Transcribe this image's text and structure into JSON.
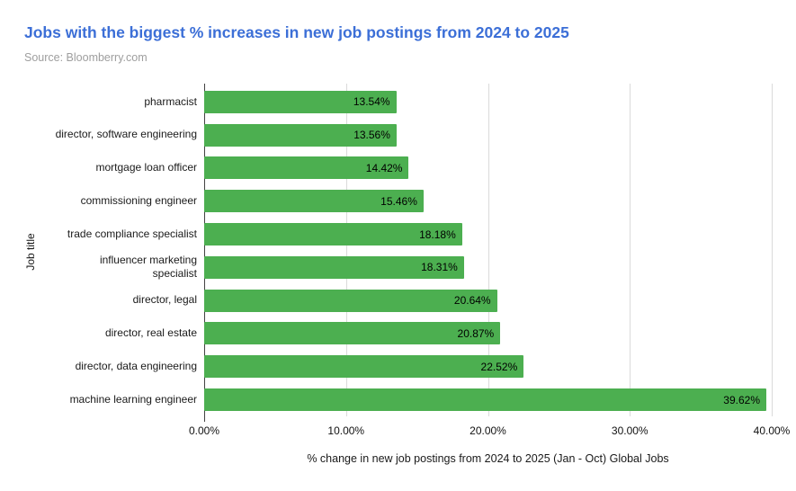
{
  "chart_data": {
    "type": "bar",
    "orientation": "horizontal",
    "title": "Jobs with the biggest % increases in new job postings from 2024 to 2025",
    "source": "Source: Bloomberry.com",
    "xlabel": "% change in new job postings from 2024 to 2025 (Jan - Oct) Global Jobs",
    "ylabel": "Job title",
    "categories": [
      "pharmacist",
      "director, software engineering",
      "mortgage loan officer",
      "commissioning engineer",
      "trade compliance specialist",
      "influencer marketing specialist",
      "director, legal",
      "director, real estate",
      "director, data engineering",
      "machine learning engineer"
    ],
    "categories_display": [
      "pharmacist",
      "director, software engineering",
      "mortgage loan officer",
      "commissioning engineer",
      "trade compliance specialist",
      "influencer marketing\nspecialist",
      "director, legal",
      "director, real estate",
      "director, data engineering",
      "machine learning engineer"
    ],
    "values": [
      13.54,
      13.56,
      14.42,
      15.46,
      18.18,
      18.31,
      20.64,
      20.87,
      22.52,
      39.62
    ],
    "value_labels": [
      "13.54%",
      "13.56%",
      "14.42%",
      "15.46%",
      "18.18%",
      "18.31%",
      "20.64%",
      "20.87%",
      "22.52%",
      "39.62%"
    ],
    "xlim": [
      0,
      40
    ],
    "x_ticks": [
      "0.00%",
      "10.00%",
      "20.00%",
      "30.00%",
      "40.00%"
    ],
    "x_tick_values": [
      0,
      10,
      20,
      30,
      40
    ],
    "grid": true,
    "legend": "none",
    "colors": {
      "bar": "#4caf50",
      "title": "#3c6fd7",
      "source": "#9e9e9e",
      "gridline": "#dadada",
      "axis_line": "#424242",
      "text": "#1a1a1a"
    }
  }
}
